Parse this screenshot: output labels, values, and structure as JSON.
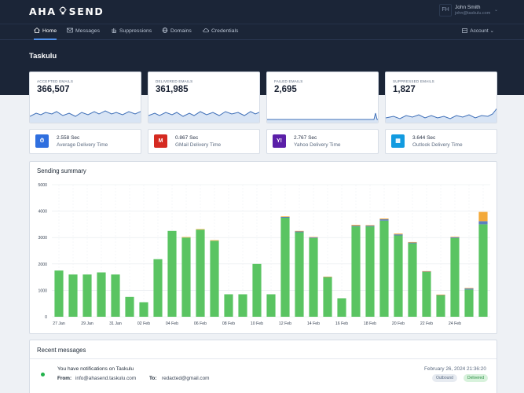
{
  "brand": {
    "name_left": "AHA",
    "name_right": "SEND",
    "logo_icon": "lightbulb-icon"
  },
  "user": {
    "initials": "FH",
    "name": "John Smith",
    "email": "john@taskulu.com"
  },
  "nav": {
    "items": [
      {
        "label": "Home",
        "icon": "home-icon",
        "active": true
      },
      {
        "label": "Messages",
        "icon": "envelope-icon",
        "active": false
      },
      {
        "label": "Suppressions",
        "icon": "hand-icon",
        "active": false
      },
      {
        "label": "Domains",
        "icon": "globe-icon",
        "active": false
      },
      {
        "label": "Credentials",
        "icon": "cloud-icon",
        "active": false
      }
    ],
    "account_label": "Account"
  },
  "page": {
    "title": "Taskulu"
  },
  "stats": [
    {
      "label": "ACCEPTED EMAILS",
      "value": "366,507"
    },
    {
      "label": "DELIVERED EMAILS",
      "value": "361,985"
    },
    {
      "label": "FAILED EMAILS",
      "value": "2,695"
    },
    {
      "label": "SUPPRESSED EMAILS",
      "value": "1,827"
    }
  ],
  "delivery": [
    {
      "seconds": "2.558 Sec",
      "name": "Average Delivery Time",
      "icon": "stopwatch-icon",
      "color": "#2f6fdf"
    },
    {
      "seconds": "0.867 Sec",
      "name": "GMail Delivery Time",
      "icon": "gmail-icon",
      "color": "#d52a21"
    },
    {
      "seconds": "2.767 Sec",
      "name": "Yahoo Delivery Time",
      "icon": "yahoo-icon",
      "color": "#5b1fa8"
    },
    {
      "seconds": "3.644 Sec",
      "name": "Outlook Delivery Time",
      "icon": "outlook-icon",
      "color": "#129be0"
    }
  ],
  "sending_summary": {
    "title": "Sending summary"
  },
  "chart_data": {
    "type": "bar",
    "stacked": true,
    "ylim": [
      0,
      5000
    ],
    "yticks": [
      0,
      1000,
      2000,
      3000,
      4000,
      5000
    ],
    "categories": [
      "27 Jan",
      "28 Jan",
      "29 Jan",
      "30 Jan",
      "31 Jan",
      "01 Feb",
      "02 Feb",
      "03 Feb",
      "04 Feb",
      "05 Feb",
      "06 Feb",
      "07 Feb",
      "08 Feb",
      "09 Feb",
      "10 Feb",
      "11 Feb",
      "12 Feb",
      "13 Feb",
      "14 Feb",
      "15 Feb",
      "16 Feb",
      "17 Feb",
      "18 Feb",
      "19 Feb",
      "20 Feb",
      "21 Feb",
      "22 Feb",
      "23 Feb",
      "24 Feb",
      "25 Feb",
      "26 Feb"
    ],
    "xtick_labels": [
      "27 Jan",
      "",
      "29 Jan",
      "",
      "31 Jan",
      "",
      "02 Feb",
      "",
      "04 Feb",
      "",
      "06 Feb",
      "",
      "08 Feb",
      "",
      "10 Feb",
      "",
      "12 Feb",
      "",
      "14 Feb",
      "",
      "16 Feb",
      "",
      "18 Feb",
      "",
      "20 Feb",
      "",
      "22 Feb",
      "",
      "24 Feb",
      "",
      ""
    ],
    "series": [
      {
        "values": [
          1750,
          1600,
          1600,
          1680,
          1600,
          750,
          550,
          2180,
          3250,
          3000,
          3300,
          2880,
          850,
          850,
          2000,
          850,
          3750,
          3200,
          2980,
          1500,
          700,
          3420,
          3420,
          3640,
          3080,
          2780,
          1700,
          820,
          2980,
          1030,
          3500
        ],
        "color": "#5ac462"
      },
      {
        "values": [
          0,
          0,
          0,
          0,
          0,
          0,
          0,
          0,
          0,
          0,
          0,
          0,
          0,
          0,
          0,
          0,
          30,
          30,
          30,
          15,
          0,
          30,
          30,
          50,
          40,
          30,
          20,
          10,
          30,
          40,
          120
        ],
        "color": "#5b7fbf"
      },
      {
        "values": [
          0,
          0,
          0,
          0,
          0,
          0,
          0,
          0,
          0,
          20,
          20,
          20,
          0,
          0,
          0,
          0,
          20,
          20,
          10,
          5,
          0,
          30,
          20,
          30,
          30,
          20,
          10,
          10,
          20,
          20,
          350
        ],
        "color": "#f3a93a"
      }
    ]
  },
  "recent": {
    "title": "Recent messages",
    "message": {
      "subject": "You have notifications on Taskulu",
      "from_label": "From:",
      "from": "info@ahasend.taskulu.com",
      "to_label": "To:",
      "to": "redacted@gmail.com",
      "date": "February 26, 2024 21:36:20",
      "direction": "Outbound",
      "status": "Delivered"
    }
  }
}
